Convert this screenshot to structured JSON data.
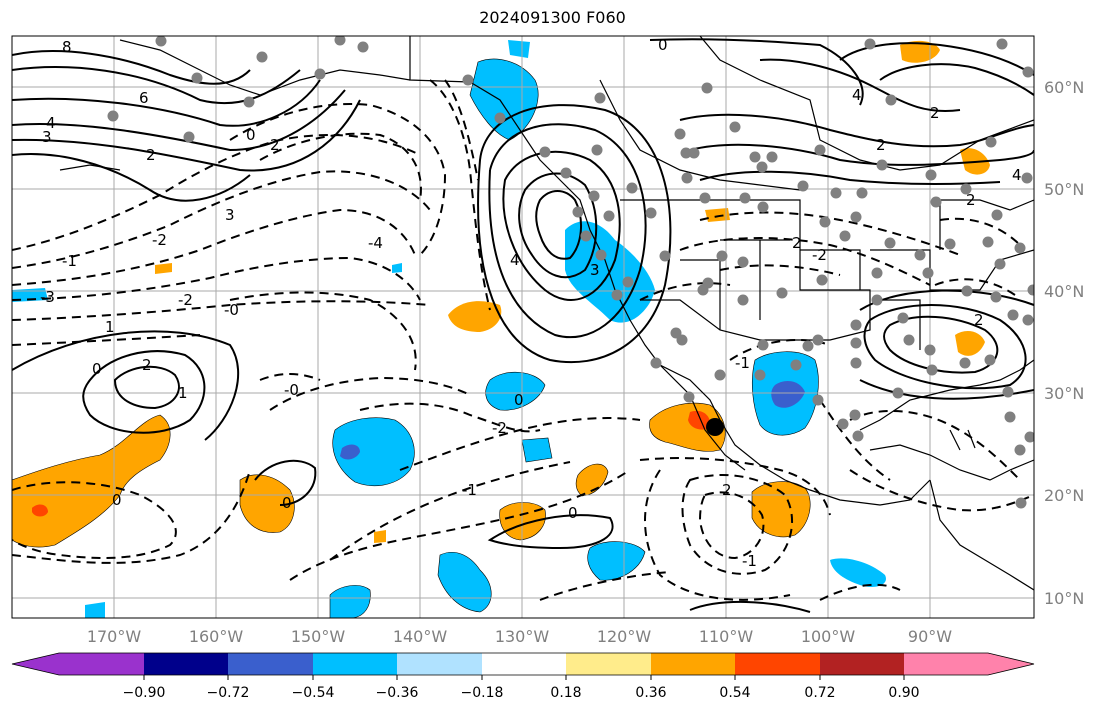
{
  "title": "2024091300 F060",
  "latitude_labels": [
    "60°N",
    "50°N",
    "40°N",
    "30°N",
    "20°N",
    "10°N"
  ],
  "longitude_labels": [
    "170°W",
    "160°W",
    "150°W",
    "140°W",
    "130°W",
    "120°W",
    "110°W",
    "100°W",
    "90°W"
  ],
  "contour_labels": [
    "8",
    "6",
    "4",
    "3",
    "2",
    "0",
    "2",
    "-2",
    "3",
    "-1",
    "-3",
    "-4",
    "4",
    "-2",
    "-0",
    "1",
    "2",
    "1",
    "0",
    "-0",
    "0",
    "-2",
    "-1",
    "0",
    "0",
    "2",
    "-1",
    "0",
    "3",
    "4",
    "2",
    "2",
    "-2",
    "-1",
    "0",
    "2",
    "2",
    "4",
    "2"
  ],
  "colorbar": {
    "ticks": [
      "−0.90",
      "−0.72",
      "−0.54",
      "−0.36",
      "−0.18",
      "0.18",
      "0.36",
      "0.54",
      "0.72",
      "0.90"
    ],
    "colors": [
      "#9a32cd",
      "#00008b",
      "#3a5fcd",
      "#00bfff",
      "#b0e2ff",
      "#ffffff",
      "#ffec8b",
      "#ffa500",
      "#ff4500",
      "#b22222",
      "#ff82ab"
    ]
  },
  "colors": {
    "cyan_fill": "#00bfff",
    "blue_fill": "#3a5fcd",
    "orange_fill": "#ffa500",
    "red_fill": "#ff4500",
    "station_dot": "#808080"
  }
}
